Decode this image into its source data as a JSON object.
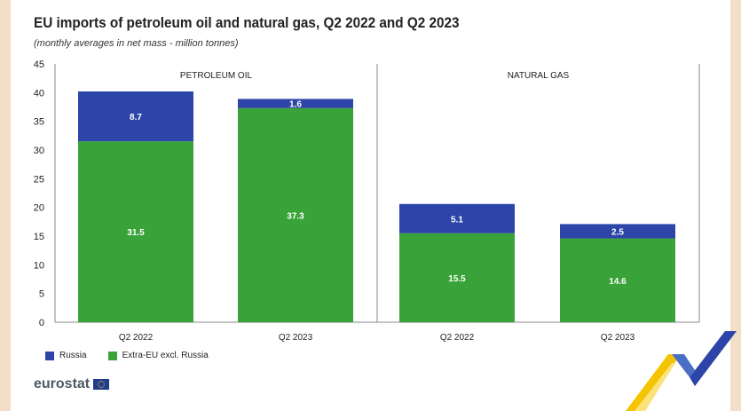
{
  "title": "EU imports of petroleum oil and natural gas, Q2 2022 and Q2 2023",
  "subtitle": "(monthly averages in net mass - million tonnes)",
  "logo_text": "eurostat",
  "colors": {
    "russia": "#2d44a8",
    "extra_eu": "#39a33a",
    "grid": "#aaaaaa",
    "axis_text": "#222222"
  },
  "chart_data": {
    "type": "bar",
    "stacked": true,
    "panels": [
      {
        "label": "PETROLEUM OIL",
        "categories": [
          "Q2 2022",
          "Q2 2023"
        ],
        "series": [
          {
            "name": "Extra-EU excl. Russia",
            "values": [
              31.5,
              37.3
            ]
          },
          {
            "name": "Russia",
            "values": [
              8.7,
              1.6
            ]
          }
        ]
      },
      {
        "label": "NATURAL GAS",
        "categories": [
          "Q2 2022",
          "Q2 2023"
        ],
        "series": [
          {
            "name": "Extra-EU excl. Russia",
            "values": [
              15.5,
              14.6
            ]
          },
          {
            "name": "Russia",
            "values": [
              5.1,
              2.5
            ]
          }
        ]
      }
    ],
    "ylim": [
      0,
      45
    ],
    "yticks": [
      "0",
      "5",
      "10",
      "15",
      "20",
      "25",
      "30",
      "35",
      "40",
      "45"
    ],
    "legend": [
      "Russia",
      "Extra-EU excl. Russia"
    ],
    "legend_position": "bottom-left"
  }
}
